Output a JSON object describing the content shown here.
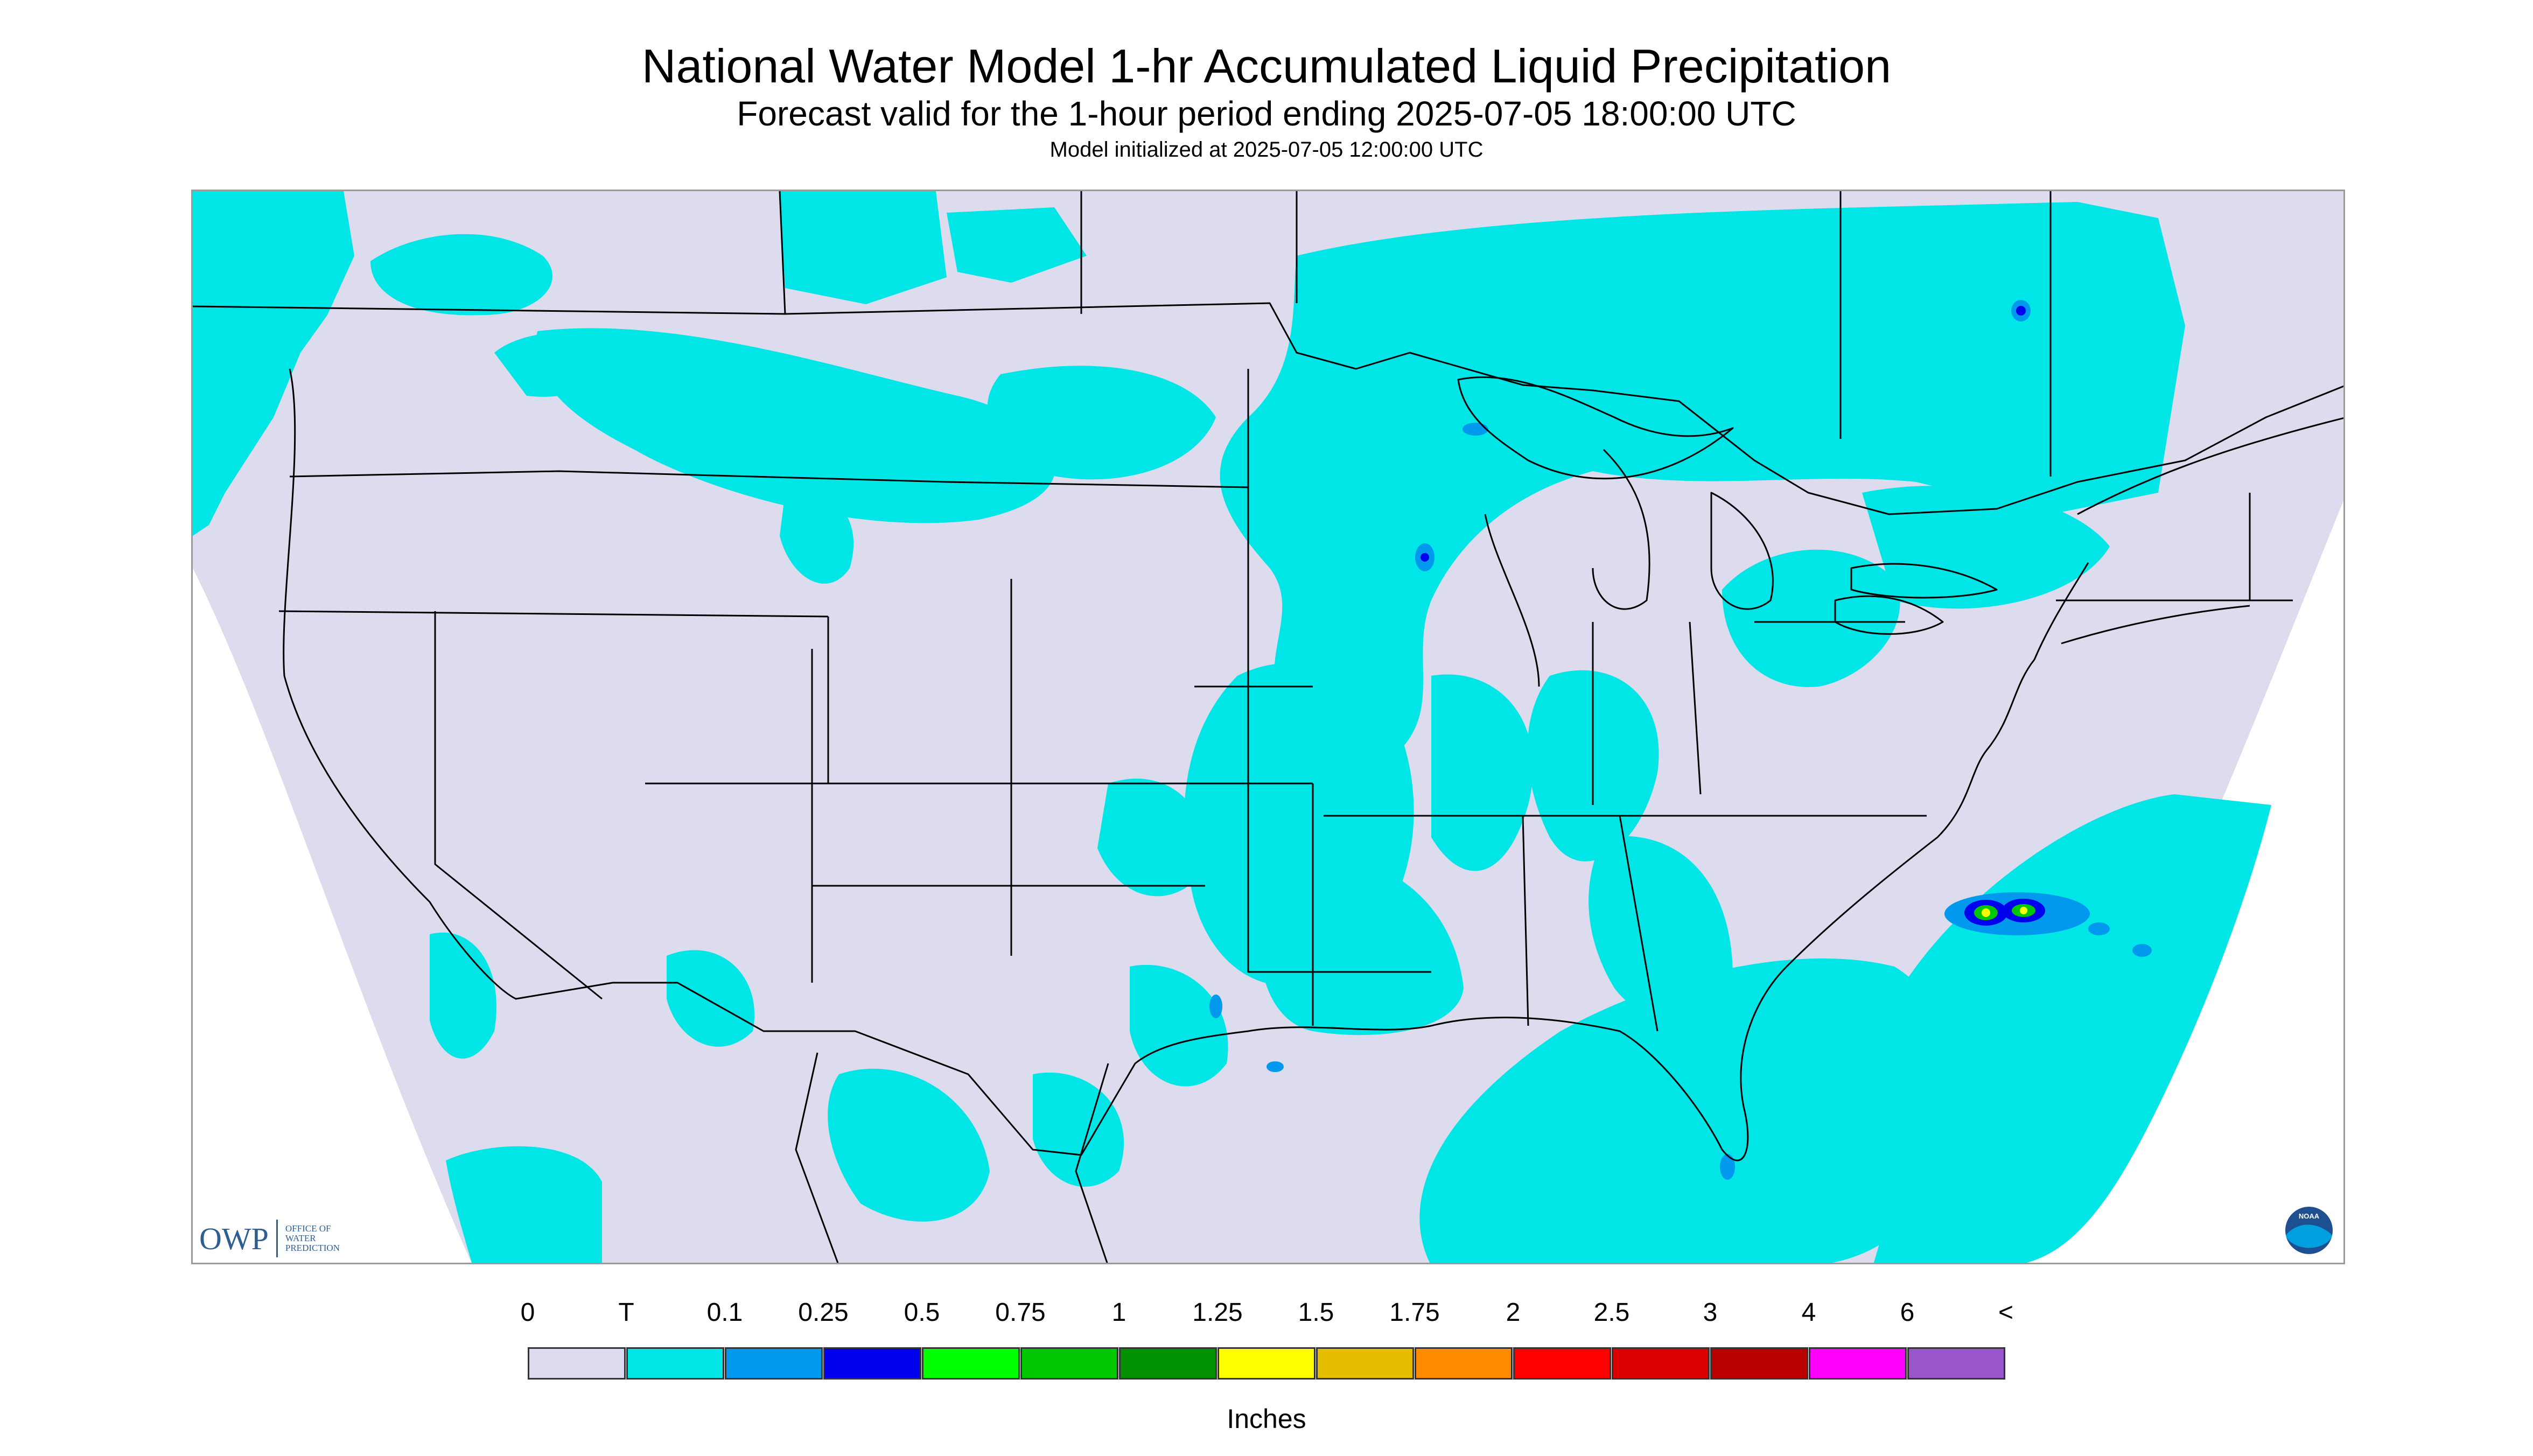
{
  "header": {
    "title": "National Water Model 1-hr Accumulated Liquid Precipitation",
    "subtitle": "Forecast valid for the 1-hour period ending 2025-07-05 18:00:00 UTC",
    "init_line": "Model initialized at 2025-07-05 12:00:00 UTC"
  },
  "map": {
    "background_color": "#dcdcee",
    "outside_domain_color": "#ffffff",
    "boundary_color": "#000000"
  },
  "logos": {
    "owp_mark": "OWP",
    "owp_text": "Office of Water Prediction",
    "noaa_icon": "noaa-logo-icon"
  },
  "legend": {
    "ticks": [
      "0",
      "T",
      "0.1",
      "0.25",
      "0.5",
      "0.75",
      "1",
      "1.25",
      "1.5",
      "1.75",
      "2",
      "2.5",
      "3",
      "4",
      "6",
      "<"
    ],
    "colors": [
      "#dcdcee",
      "#00e5e5",
      "#0099ee",
      "#0000ee",
      "#00ff00",
      "#00c800",
      "#009000",
      "#ffff00",
      "#e5be00",
      "#ff8c00",
      "#ff0000",
      "#dd0000",
      "#bb0000",
      "#ff00ff",
      "#9955cc"
    ],
    "units": "Inches"
  }
}
